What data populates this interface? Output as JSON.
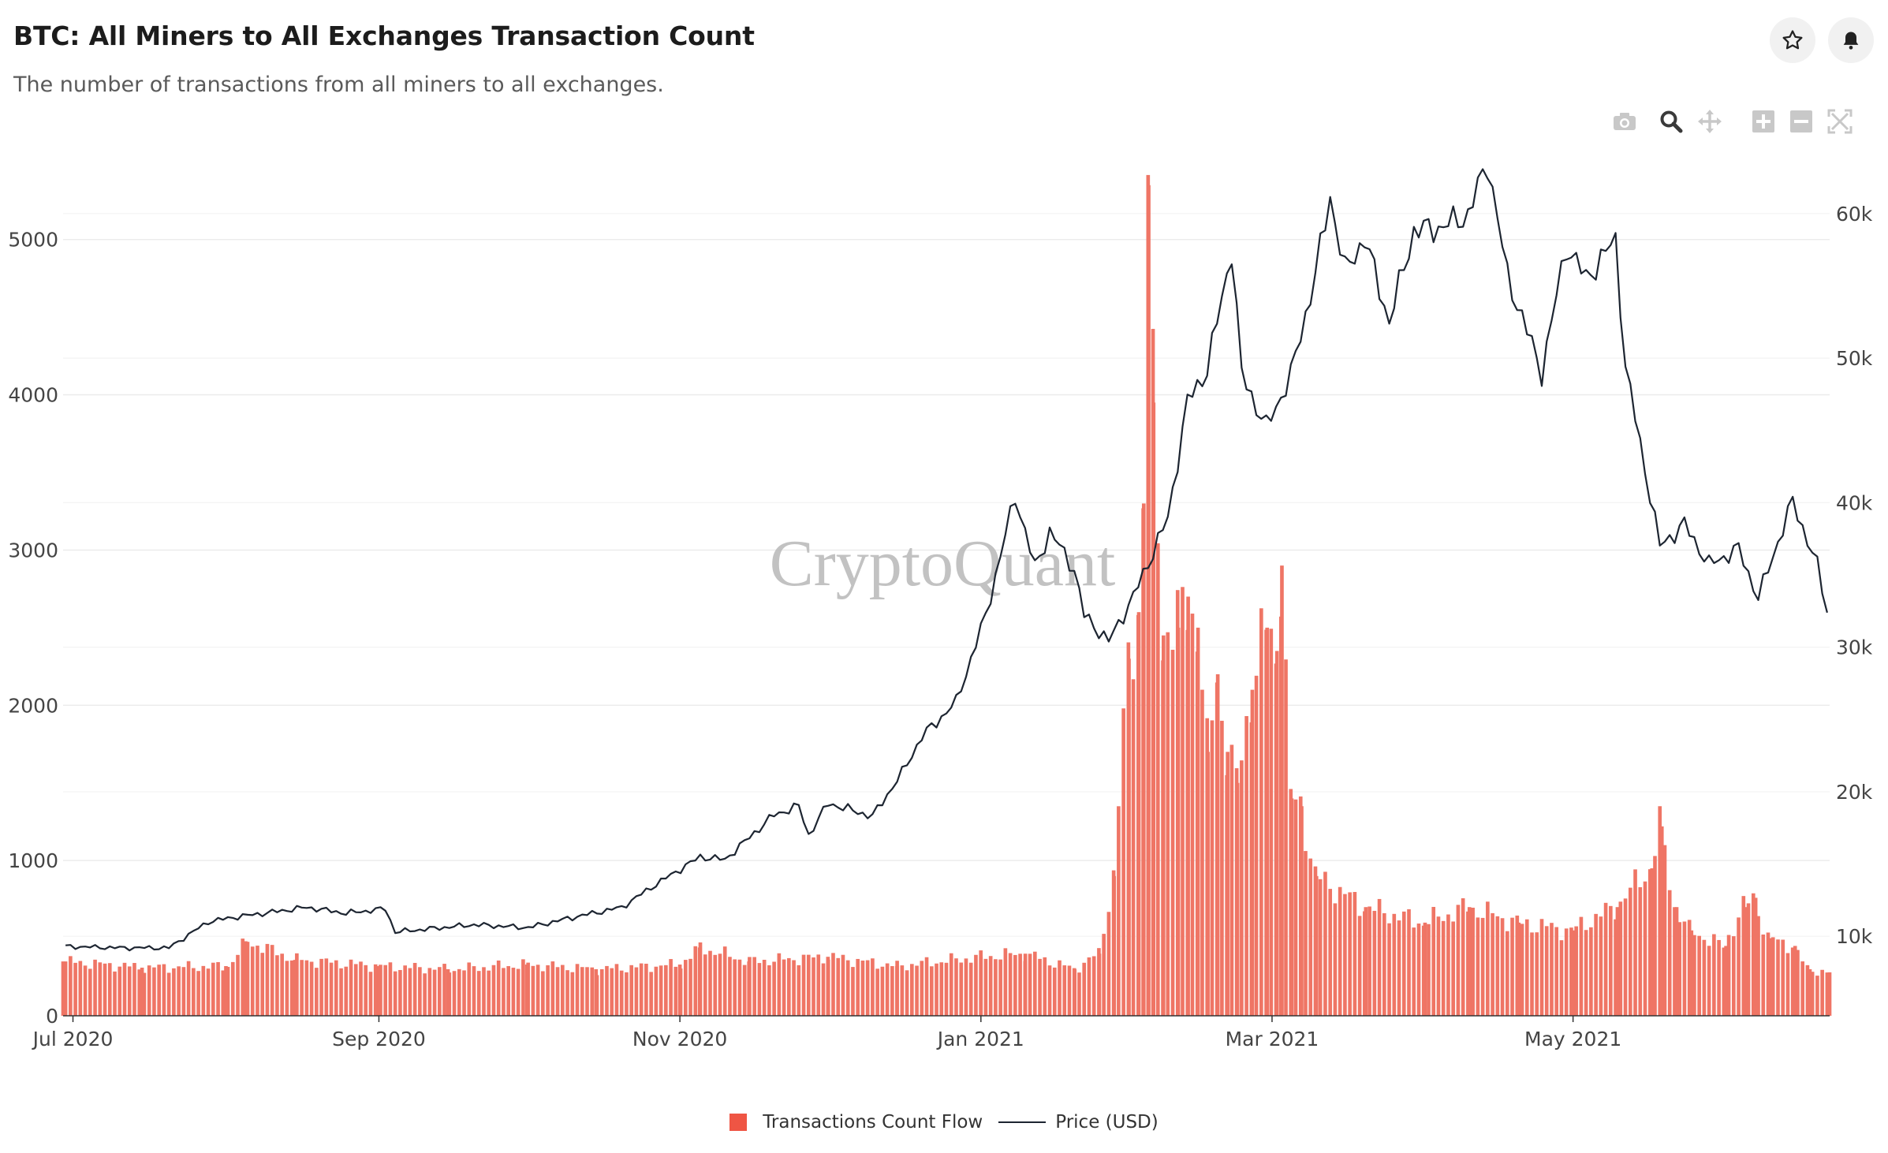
{
  "header": {
    "title": "BTC: All Miners to All Exchanges Transaction Count",
    "subtitle": "The number of transactions from all miners to all exchanges."
  },
  "buttons": {
    "favorite_icon": "star-icon",
    "alert_icon": "bell-icon"
  },
  "toolbar": [
    "camera-icon",
    "zoom-icon",
    "pan-icon",
    "zoom-in-icon",
    "zoom-out-icon",
    "autoscale-icon"
  ],
  "watermark": "CryptoQuant",
  "colors": {
    "bars": "#ef7565",
    "price_line": "#1d2531",
    "legend_swatch": "#ef5544"
  },
  "chart_data": {
    "type": "bar+line",
    "x_tick_labels": [
      "Jul 2020",
      "Sep 2020",
      "Nov 2020",
      "Jan 2021",
      "Mar 2021",
      "May 2021"
    ],
    "x_range": [
      "2020-06-29",
      "2021-06-22"
    ],
    "y_left": {
      "range": [
        0,
        5400
      ],
      "ticks": [
        "0",
        "1000",
        "2000",
        "3000",
        "4000",
        "5000"
      ]
    },
    "y_right": {
      "range": [
        4500,
        62500
      ],
      "ticks": [
        "10k",
        "20k",
        "30k",
        "40k",
        "50k",
        "60k"
      ]
    },
    "legend": [
      "Transactions Count Flow",
      "Price (USD)"
    ],
    "legend_position": "bottom-center",
    "grid": true,
    "series": [
      {
        "name": "Transactions Count Flow",
        "type": "bar",
        "axis": "left",
        "points": [
          [
            "2020-06-29",
            350
          ],
          [
            "2020-07-15",
            310
          ],
          [
            "2020-08-01",
            320
          ],
          [
            "2020-08-05",
            480
          ],
          [
            "2020-08-15",
            360
          ],
          [
            "2020-09-01",
            320
          ],
          [
            "2020-09-15",
            300
          ],
          [
            "2020-10-01",
            330
          ],
          [
            "2020-10-15",
            300
          ],
          [
            "2020-11-01",
            330
          ],
          [
            "2020-11-05",
            440
          ],
          [
            "2020-11-15",
            350
          ],
          [
            "2020-12-01",
            380
          ],
          [
            "2020-12-15",
            320
          ],
          [
            "2021-01-01",
            380
          ],
          [
            "2021-01-10",
            400
          ],
          [
            "2021-01-20",
            300
          ],
          [
            "2021-01-25",
            400
          ],
          [
            "2021-01-28",
            900
          ],
          [
            "2021-01-31",
            2300
          ],
          [
            "2021-02-02",
            2600
          ],
          [
            "2021-02-03",
            3300
          ],
          [
            "2021-02-04",
            5350
          ],
          [
            "2021-02-05",
            3950
          ],
          [
            "2021-02-07",
            2450
          ],
          [
            "2021-02-10",
            2500
          ],
          [
            "2021-02-12",
            2700
          ],
          [
            "2021-02-14",
            2500
          ],
          [
            "2021-02-16",
            1700
          ],
          [
            "2021-02-18",
            2200
          ],
          [
            "2021-02-20",
            1700
          ],
          [
            "2021-02-22",
            1500
          ],
          [
            "2021-02-25",
            2100
          ],
          [
            "2021-02-28",
            2500
          ],
          [
            "2021-03-02",
            2350
          ],
          [
            "2021-03-03",
            2900
          ],
          [
            "2021-03-05",
            1400
          ],
          [
            "2021-03-07",
            1350
          ],
          [
            "2021-03-10",
            900
          ],
          [
            "2021-03-20",
            700
          ],
          [
            "2021-04-01",
            600
          ],
          [
            "2021-04-10",
            700
          ],
          [
            "2021-04-20",
            600
          ],
          [
            "2021-05-01",
            550
          ],
          [
            "2021-05-10",
            700
          ],
          [
            "2021-05-17",
            950
          ],
          [
            "2021-05-19",
            1220
          ],
          [
            "2021-05-22",
            700
          ],
          [
            "2021-05-25",
            550
          ],
          [
            "2021-06-01",
            450
          ],
          [
            "2021-06-05",
            700
          ],
          [
            "2021-06-07",
            760
          ],
          [
            "2021-06-10",
            500
          ],
          [
            "2021-06-15",
            450
          ],
          [
            "2021-06-18",
            300
          ],
          [
            "2021-06-22",
            280
          ]
        ]
      },
      {
        "name": "Price (USD)",
        "type": "line",
        "axis": "right",
        "points": [
          [
            "2020-06-29",
            9300
          ],
          [
            "2020-07-10",
            9200
          ],
          [
            "2020-07-20",
            9200
          ],
          [
            "2020-07-28",
            11000
          ],
          [
            "2020-08-02",
            11300
          ],
          [
            "2020-08-17",
            12000
          ],
          [
            "2020-08-25",
            11600
          ],
          [
            "2020-09-02",
            11900
          ],
          [
            "2020-09-04",
            10300
          ],
          [
            "2020-09-20",
            10800
          ],
          [
            "2020-10-01",
            10600
          ],
          [
            "2020-10-10",
            11300
          ],
          [
            "2020-10-20",
            12000
          ],
          [
            "2020-10-27",
            13600
          ],
          [
            "2020-11-05",
            15500
          ],
          [
            "2020-11-10",
            15300
          ],
          [
            "2020-11-20",
            18400
          ],
          [
            "2020-11-25",
            19000
          ],
          [
            "2020-11-27",
            17000
          ],
          [
            "2020-12-01",
            19200
          ],
          [
            "2020-12-10",
            18300
          ],
          [
            "2020-12-16",
            21300
          ],
          [
            "2020-12-20",
            23800
          ],
          [
            "2020-12-27",
            26200
          ],
          [
            "2021-01-02",
            32200
          ],
          [
            "2021-01-08",
            40500
          ],
          [
            "2021-01-12",
            35500
          ],
          [
            "2021-01-15",
            38000
          ],
          [
            "2021-01-20",
            35400
          ],
          [
            "2021-01-22",
            32200
          ],
          [
            "2021-01-27",
            30400
          ],
          [
            "2021-02-01",
            33500
          ],
          [
            "2021-02-08",
            38900
          ],
          [
            "2021-02-12",
            47000
          ],
          [
            "2021-02-16",
            49200
          ],
          [
            "2021-02-21",
            57500
          ],
          [
            "2021-02-23",
            48900
          ],
          [
            "2021-02-28",
            45200
          ],
          [
            "2021-03-05",
            48800
          ],
          [
            "2021-03-10",
            55800
          ],
          [
            "2021-03-13",
            61200
          ],
          [
            "2021-03-16",
            56000
          ],
          [
            "2021-03-20",
            58300
          ],
          [
            "2021-03-25",
            52500
          ],
          [
            "2021-03-30",
            58800
          ],
          [
            "2021-04-05",
            59100
          ],
          [
            "2021-04-10",
            59900
          ],
          [
            "2021-04-14",
            63600
          ],
          [
            "2021-04-18",
            55700
          ],
          [
            "2021-04-25",
            49000
          ],
          [
            "2021-04-30",
            57800
          ],
          [
            "2021-05-04",
            55500
          ],
          [
            "2021-05-10",
            58200
          ],
          [
            "2021-05-12",
            49400
          ],
          [
            "2021-05-19",
            37000
          ],
          [
            "2021-05-24",
            38500
          ],
          [
            "2021-05-29",
            35700
          ],
          [
            "2021-06-04",
            36800
          ],
          [
            "2021-06-08",
            33400
          ],
          [
            "2021-06-12",
            37300
          ],
          [
            "2021-06-15",
            40100
          ],
          [
            "2021-06-20",
            35600
          ],
          [
            "2021-06-22",
            32500
          ]
        ]
      }
    ]
  }
}
